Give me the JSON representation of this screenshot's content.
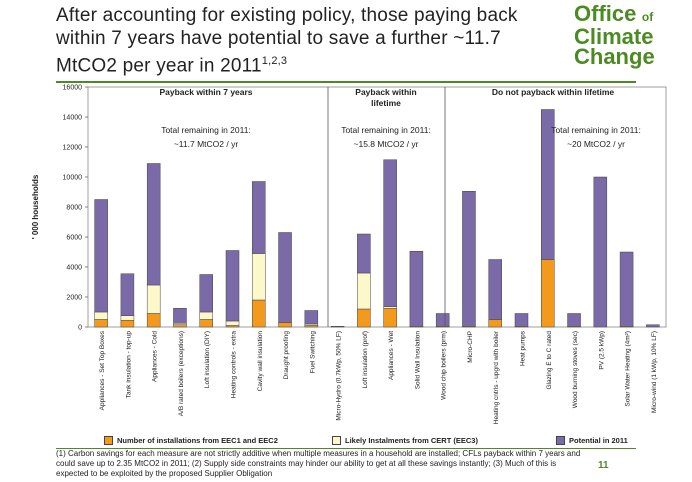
{
  "slide": {
    "title": "After accounting for existing policy, those paying back within 7 years have potential to save a further ~11.7 MtCO2 per year in 2011",
    "title_superscript": "1,2,3",
    "page_number": "11",
    "footnote": "(1) Carbon savings for each measure are not strictly additive when multiple measures in a household are installed; CFLs payback within 7 years and could save up to 2.35 MtCO2 in 2011; (2) Supply side constraints may hinder our ability to get at all these savings instantly; (3) Much of this is expected to be exploited by the proposed Supplier Obligation"
  },
  "logo": {
    "line1": "Office",
    "line1_small": "of",
    "line2": "Climate",
    "line3": "Change",
    "accent_color": "#4c8a23"
  },
  "colors": {
    "eec": "#f39a1c",
    "cert": "#fdf8c9",
    "potential": "#7b6aa8"
  },
  "chart_data": {
    "type": "bar",
    "stacked": true,
    "ylabel": "' 000 households",
    "ylim": [
      0,
      16000
    ],
    "yticks": [
      0,
      2000,
      4000,
      6000,
      8000,
      10000,
      12000,
      14000,
      16000
    ],
    "grid": false,
    "categories": [
      "Appliances - Set Top Boxes",
      "Tank insulation - top-up",
      "Appliances - Cold",
      "A/B rated boilers (exceptions)",
      "Loft insulation (DIY)",
      "Heating controls - extra",
      "Cavity wall insulation",
      "Draught proofing",
      "Fuel Switching",
      "Micro-Hydro (0.7kWp, 50% LF)",
      "Loft insulation (prof)",
      "Appliances - Wet",
      "Solid Wall Insulation",
      "Wood chip boilers (prm)",
      "Micro-CHP",
      "Heating cntrls - upgrd with boiler",
      "Heat pumps",
      "Glazing E to C rated",
      "Wood burning stoves (sec)",
      "PV (2.5 kWp)",
      "Solar Water Heating (4m²)",
      "Micro-wind (1 kWp, 10% LF)"
    ],
    "series": [
      {
        "name": "Number of installations from EEC1 and EEC2",
        "values": [
          500,
          450,
          900,
          150,
          500,
          100,
          1800,
          300,
          100,
          0,
          1200,
          1250,
          50,
          50,
          50,
          500,
          50,
          4500,
          50,
          0,
          50,
          0
        ]
      },
      {
        "name": "Likely Instalments from CERT (EEC3)",
        "values": [
          500,
          300,
          1900,
          100,
          500,
          300,
          3100,
          0,
          100,
          0,
          2400,
          100,
          0,
          0,
          0,
          0,
          0,
          0,
          0,
          0,
          0,
          0
        ]
      },
      {
        "name": "Potential in 2011",
        "values": [
          7500,
          2800,
          8100,
          1000,
          2500,
          4700,
          4800,
          6000,
          900,
          50,
          2600,
          9800,
          5000,
          850,
          9000,
          4000,
          850,
          10000,
          850,
          10000,
          4950,
          150
        ]
      }
    ],
    "groups": [
      {
        "label": "Payback within 7 years",
        "remaining_label": "Total remaining in 2011:",
        "remaining_value": "~11.7 MtCO2 / yr"
      },
      {
        "label": "Payback within",
        "label2": "lifetime",
        "remaining_label": "Total remaining in 2011:",
        "remaining_value": "~15.8 MtCO2 / yr"
      },
      {
        "label": "Do not payback within lifetime",
        "remaining_label": "Total remaining in 2011:",
        "remaining_value": "~20 MtCO2 / yr"
      }
    ]
  }
}
